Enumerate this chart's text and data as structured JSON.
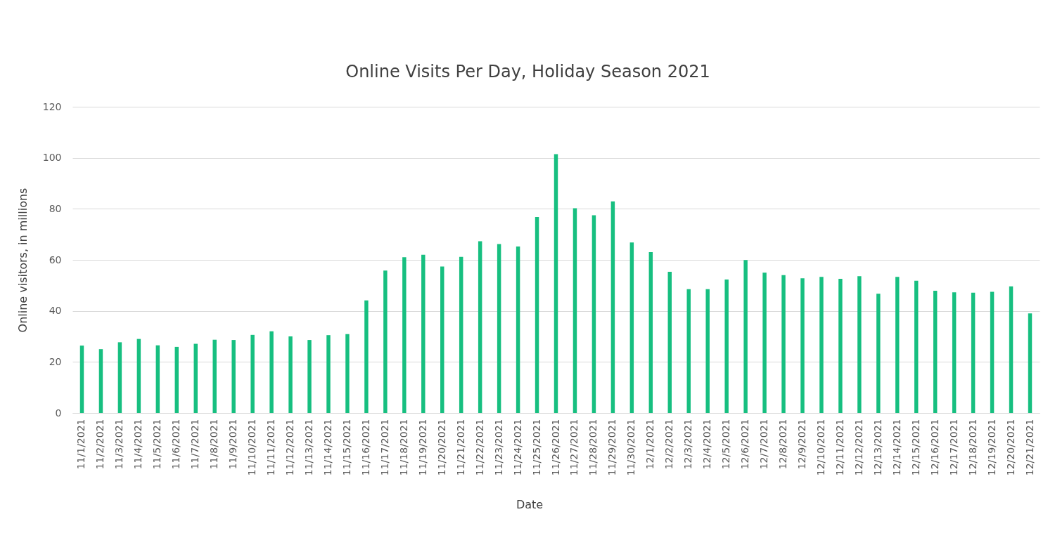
{
  "chart_data": {
    "type": "bar",
    "title": "Online Visits Per Day, Holiday Season 2021",
    "xlabel": "Date",
    "ylabel": "Online visitors, in millions",
    "categories": [
      "11/1/2021",
      "11/2/2021",
      "11/3/2021",
      "11/4/2021",
      "11/5/2021",
      "11/6/2021",
      "11/7/2021",
      "11/8/2021",
      "11/9/2021",
      "11/10/2021",
      "11/11/2021",
      "11/12/2021",
      "11/13/2021",
      "11/14/2021",
      "11/15/2021",
      "11/16/2021",
      "11/17/2021",
      "11/18/2021",
      "11/19/2021",
      "11/20/2021",
      "11/21/2021",
      "11/22/2021",
      "11/23/2021",
      "11/24/2021",
      "11/25/2021",
      "11/26/2021",
      "11/27/2021",
      "11/28/2021",
      "11/29/2021",
      "11/30/2021",
      "12/1/2021",
      "12/2/2021",
      "12/3/2021",
      "12/4/2021",
      "12/5/2021",
      "12/6/2021",
      "12/7/2021",
      "12/8/2021",
      "12/9/2021",
      "12/10/2021",
      "12/11/2021",
      "12/12/2021",
      "12/13/2021",
      "12/14/2021",
      "12/15/2021",
      "12/16/2021",
      "12/17/2021",
      "12/18/2021",
      "12/19/2021",
      "12/20/2021",
      "12/21/2021"
    ],
    "values": [
      26.4,
      25.0,
      27.7,
      29.0,
      26.5,
      25.9,
      27.1,
      28.7,
      28.6,
      30.6,
      32.0,
      30.0,
      28.6,
      30.5,
      30.9,
      44.1,
      55.8,
      61.0,
      62.0,
      57.4,
      61.2,
      67.3,
      66.2,
      65.2,
      76.8,
      101.4,
      80.2,
      77.5,
      82.9,
      66.8,
      63.0,
      55.3,
      48.5,
      48.5,
      52.3,
      59.9,
      55.0,
      54.0,
      52.8,
      53.3,
      52.6,
      53.6,
      46.7,
      53.3,
      51.8,
      47.9,
      47.3,
      47.1,
      47.5,
      49.6,
      39.0
    ],
    "color": "#17bf80",
    "ylim": [
      0,
      120
    ],
    "yticks": [
      0,
      20,
      40,
      60,
      80,
      100,
      120
    ],
    "grid": "y"
  }
}
